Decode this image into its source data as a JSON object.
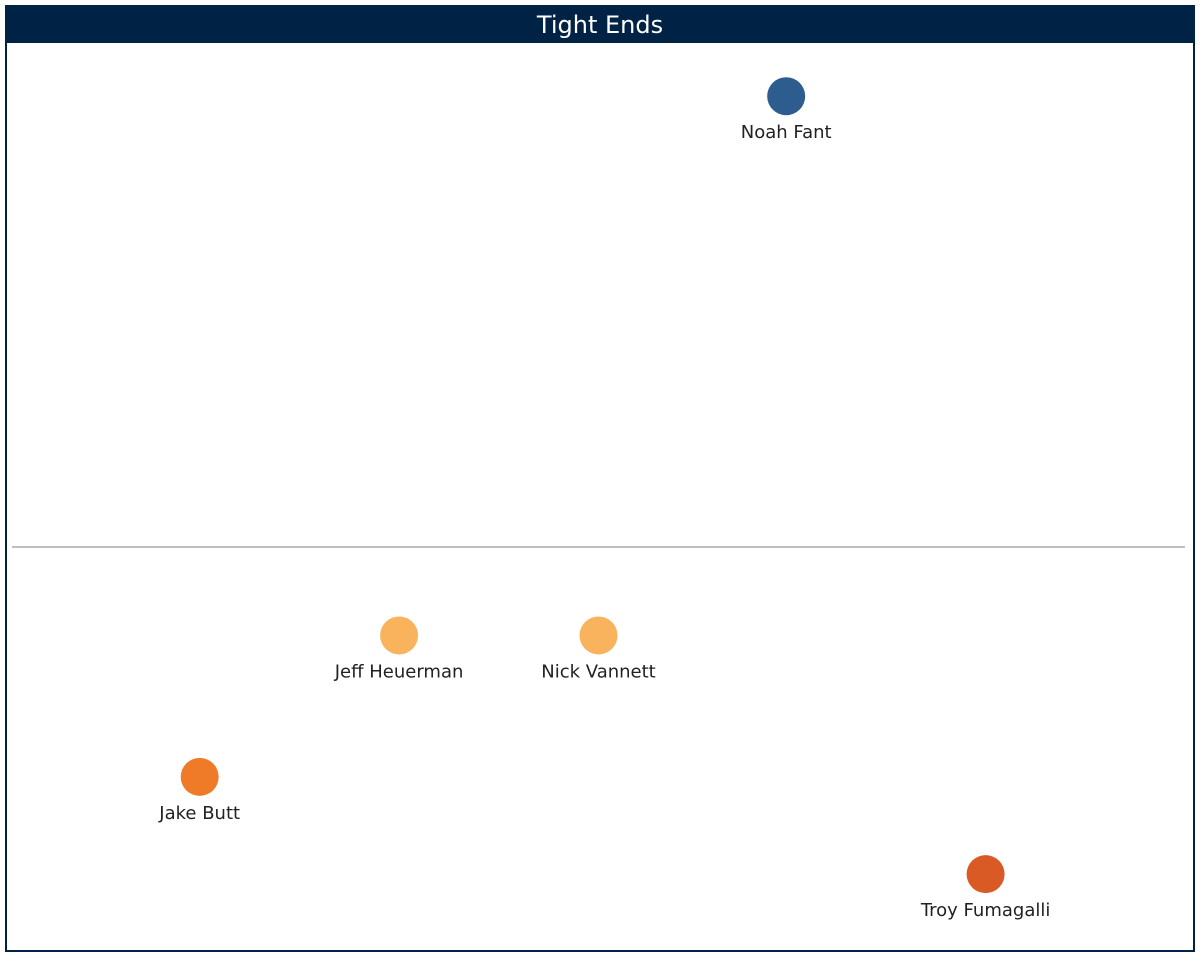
{
  "chart_data": {
    "type": "scatter",
    "title": "Tight Ends",
    "xlabel": "",
    "ylabel": "",
    "xlim": [
      0,
      100
    ],
    "ylim": [
      0,
      100
    ],
    "reference_line": {
      "y": 44
    },
    "grid": false,
    "colors": {
      "title_bg": "#002244",
      "reference_line": "#bfbfbf"
    },
    "points": [
      {
        "label": "Noah Fant",
        "x": 66,
        "y": 95,
        "color": "#2d5d8e"
      },
      {
        "label": "Jeff Heuerman",
        "x": 33,
        "y": 34,
        "color": "#f9b35c"
      },
      {
        "label": "Nick Vannett",
        "x": 50,
        "y": 34,
        "color": "#f9b35c"
      },
      {
        "label": "Jake Butt",
        "x": 16,
        "y": 18,
        "color": "#ef7b29"
      },
      {
        "label": "Troy Fumagalli",
        "x": 83,
        "y": 7,
        "color": "#d95a24"
      }
    ]
  }
}
